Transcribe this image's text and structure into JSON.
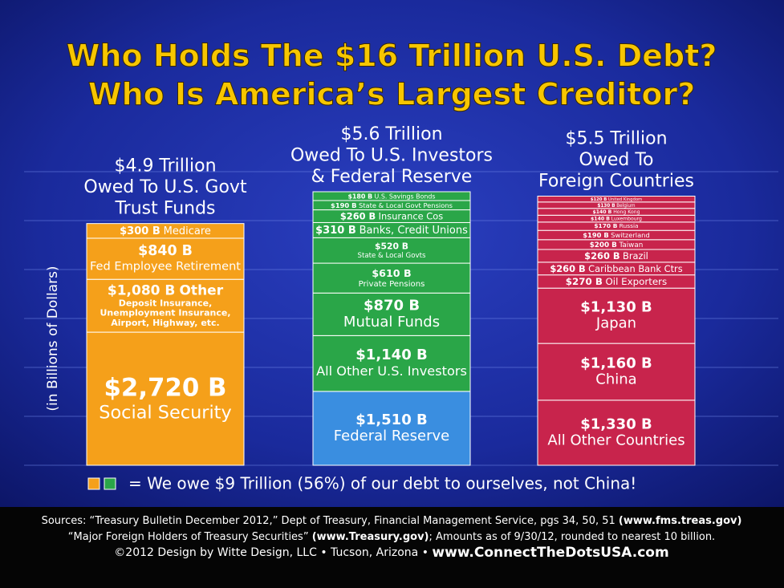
{
  "chart_data": {
    "type": "stacked_columns",
    "title": [
      "Who Holds The $16 Trillion U.S. Debt?",
      "Who Is America’s Largest Creditor?"
    ],
    "y_label": "(in Billions of Dollars)",
    "ylim": [
      0,
      6000
    ],
    "yticks": [
      0,
      1000,
      2000,
      3000,
      4000,
      5000,
      6000
    ],
    "grid": true,
    "columns": [
      {
        "title": [
          "$4.9 Trillion",
          "Owed To U.S. Govt",
          "Trust Funds"
        ],
        "color": "#f5a01a",
        "segments": [
          {
            "value": 300,
            "value_label": "$300 B",
            "name": "Medicare"
          },
          {
            "value": 840,
            "value_label": "$840 B",
            "name": "Fed Employee Retirement"
          },
          {
            "value": 1080,
            "value_label": "$1,080 B",
            "name": "Other",
            "detail": [
              "Deposit Insurance,",
              "Unemployment Insurance,",
              "Airport, Highway, etc."
            ]
          },
          {
            "value": 2720,
            "value_label": "$2,720 B",
            "name": "Social Security"
          }
        ]
      },
      {
        "title": [
          "$5.6 Trillion",
          "Owed To U.S. Investors",
          "& Federal Reserve"
        ],
        "color": "#2aa648",
        "segments": [
          {
            "value": 180,
            "value_label": "$180 B",
            "name": "U.S. Savings Bonds"
          },
          {
            "value": 190,
            "value_label": "$190 B",
            "name": "State & Local Govt Pensions"
          },
          {
            "value": 260,
            "value_label": "$260 B",
            "name": "Insurance Cos"
          },
          {
            "value": 310,
            "value_label": "$310 B",
            "name": "Banks, Credit Unions"
          },
          {
            "value": 520,
            "value_label": "$520 B",
            "name": "State & Local Govts"
          },
          {
            "value": 610,
            "value_label": "$610 B",
            "name": "Private Pensions"
          },
          {
            "value": 870,
            "value_label": "$870 B",
            "name": "Mutual Funds"
          },
          {
            "value": 1140,
            "value_label": "$1,140 B",
            "name": "All Other U.S. Investors"
          },
          {
            "value": 1510,
            "value_label": "$1,510 B",
            "name": "Federal Reserve",
            "color": "#3a8ee0"
          }
        ]
      },
      {
        "title": [
          "$5.5 Trillion",
          "Owed To",
          "Foreign Countries"
        ],
        "color": "#c8244c",
        "segments": [
          {
            "value": 120,
            "value_label": "$120 B",
            "name": "United Kingdom"
          },
          {
            "value": 130,
            "value_label": "$130 B",
            "name": "Belgium"
          },
          {
            "value": 140,
            "value_label": "$140 B",
            "name": "Hong Kong"
          },
          {
            "value": 140,
            "value_label": "$140 B",
            "name": "Luxembourg"
          },
          {
            "value": 170,
            "value_label": "$170 B",
            "name": "Russia"
          },
          {
            "value": 190,
            "value_label": "$190 B",
            "name": "Switzerland"
          },
          {
            "value": 200,
            "value_label": "$200 B",
            "name": "Taiwan"
          },
          {
            "value": 260,
            "value_label": "$260 B",
            "name": "Brazil"
          },
          {
            "value": 260,
            "value_label": "$260 B",
            "name": "Caribbean Bank Ctrs"
          },
          {
            "value": 270,
            "value_label": "$270 B",
            "name": "Oil Exporters"
          },
          {
            "value": 1130,
            "value_label": "$1,130 B",
            "name": "Japan"
          },
          {
            "value": 1160,
            "value_label": "$1,160 B",
            "name": "China"
          },
          {
            "value": 1330,
            "value_label": "$1,330 B",
            "name": "All Other Countries"
          }
        ]
      }
    ],
    "legend_text": "= We owe $9 Trillion (56%) of our debt to ourselves, not China!",
    "footer": [
      [
        {
          "text": "Sources: “Treasury Bulletin December 2012,” Dept of Treasury, Financial Management Service, pgs 34, 50, 51 "
        },
        {
          "text": "(www.fms.treas.gov)",
          "bold": true
        }
      ],
      [
        {
          "text": "“Major Foreign Holders of Treasury Securities” "
        },
        {
          "text": "(www.Treasury.gov)",
          "bold": true
        },
        {
          "text": "; Amounts as of 9/30/12, rounded to nearest 10 billion."
        }
      ],
      [
        {
          "text": "©2012 Design by Witte Design, LLC • Tucson, Arizona  •  "
        },
        {
          "text": "www.ConnectTheDotsUSA.com",
          "bold": true
        }
      ]
    ]
  }
}
